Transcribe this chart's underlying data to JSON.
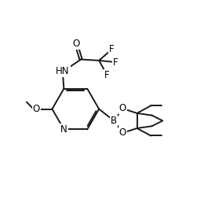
{
  "bg_color": "#ffffff",
  "line_color": "#1a1a1a",
  "line_width": 1.4,
  "font_size": 8.5,
  "figsize": [
    2.74,
    2.77
  ],
  "dpi": 100,
  "xlim": [
    0,
    10
  ],
  "ylim": [
    0,
    10
  ]
}
